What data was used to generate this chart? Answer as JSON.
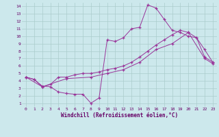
{
  "bg_color": "#cce8ec",
  "grid_color": "#aacccc",
  "line_color": "#993399",
  "xlim": [
    -0.5,
    23.5
  ],
  "ylim": [
    0.5,
    14.5
  ],
  "xticks": [
    0,
    1,
    2,
    3,
    4,
    5,
    6,
    7,
    8,
    9,
    10,
    11,
    12,
    13,
    14,
    15,
    16,
    17,
    18,
    19,
    20,
    21,
    22,
    23
  ],
  "yticks": [
    1,
    2,
    3,
    4,
    5,
    6,
    7,
    8,
    9,
    10,
    11,
    12,
    13,
    14
  ],
  "xlabel": "Windchill (Refroidissement éolien,°C)",
  "line1_x": [
    0,
    1,
    2,
    3,
    4,
    5,
    6,
    7,
    8,
    9,
    10,
    11,
    12,
    13,
    14,
    15,
    16,
    17,
    18,
    19,
    20,
    21,
    22,
    23
  ],
  "line1_y": [
    4.5,
    4.2,
    3.3,
    3.2,
    2.5,
    2.3,
    2.2,
    2.2,
    1.0,
    1.7,
    9.5,
    9.3,
    9.8,
    11.0,
    11.2,
    14.2,
    13.8,
    12.3,
    10.8,
    10.5,
    10.0,
    9.8,
    8.2,
    6.5
  ],
  "line2_x": [
    0,
    1,
    2,
    3,
    4,
    5,
    6,
    7,
    8,
    9,
    10,
    11,
    12,
    13,
    14,
    15,
    16,
    17,
    18,
    19,
    20,
    21,
    22,
    23
  ],
  "line2_y": [
    4.5,
    4.2,
    3.2,
    3.5,
    4.5,
    4.5,
    4.8,
    5.0,
    5.0,
    5.2,
    5.5,
    5.7,
    6.0,
    6.5,
    7.2,
    8.0,
    8.8,
    9.5,
    10.2,
    10.8,
    10.5,
    9.8,
    7.2,
    6.5
  ],
  "line3_x": [
    0,
    2,
    5,
    8,
    10,
    12,
    14,
    16,
    18,
    20,
    22,
    23
  ],
  "line3_y": [
    4.5,
    3.2,
    4.3,
    4.5,
    5.0,
    5.5,
    6.5,
    8.2,
    9.0,
    10.5,
    7.0,
    6.3
  ]
}
